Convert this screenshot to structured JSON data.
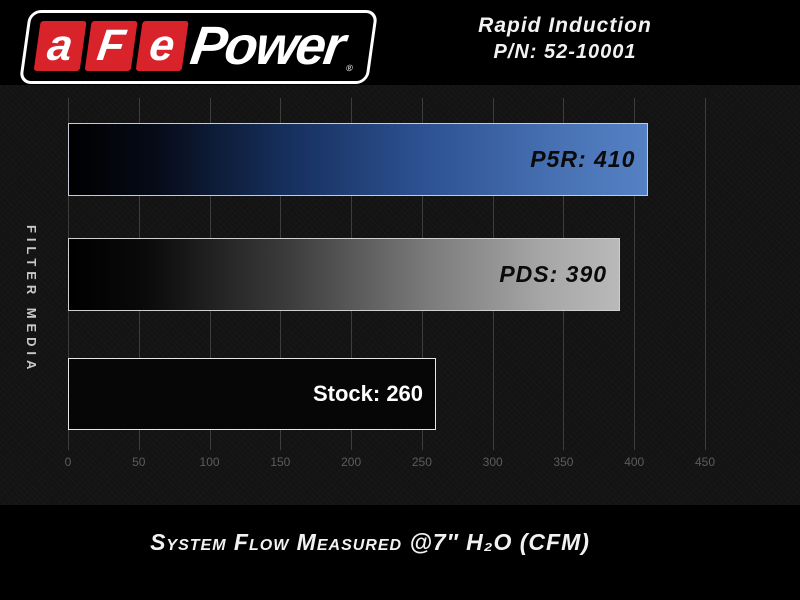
{
  "header": {
    "logo": {
      "tiles": [
        "a",
        "F",
        "e"
      ],
      "power": "Power",
      "reg": "®"
    },
    "product_line1": "Rapid Induction",
    "product_line2": "P/N: 52-10001",
    "text_color": "#f2f2f2"
  },
  "chart_data": {
    "type": "bar",
    "orientation": "horizontal",
    "ylabel": "FILTER MEDIA",
    "xlabel": "System Flow Measured @7″ H₂O (CFM)",
    "categories": [
      "P5R",
      "PDS",
      "Stock"
    ],
    "series": [
      {
        "name": "P5R",
        "value": 410,
        "label": "P5R: 410",
        "bar_style": "blue-gradient",
        "label_style": "dark-italic"
      },
      {
        "name": "PDS",
        "value": 390,
        "label": "PDS: 390",
        "bar_style": "silver-gradient",
        "label_style": "dark-italic"
      },
      {
        "name": "Stock",
        "value": 260,
        "label": "Stock: 260",
        "bar_style": "black",
        "label_style": "light-plain"
      }
    ],
    "xlim": [
      0,
      450
    ],
    "xticks": [
      0,
      50,
      100,
      150,
      200,
      250,
      300,
      350,
      400,
      450
    ],
    "grid": "vertical",
    "legend": false
  },
  "colors": {
    "background": "#000000",
    "chart_background": "#131313",
    "gridline": "#3d3d3d",
    "accent_red": "#d8232a",
    "bar_blue_end": "#5581c4",
    "bar_silver_end": "#b9b9b9",
    "bar_stock_fill": "#060606",
    "bar_border_light": "#e6e6e6",
    "tick_text": "#5c5c5c",
    "header_text": "#f2f2f2"
  }
}
